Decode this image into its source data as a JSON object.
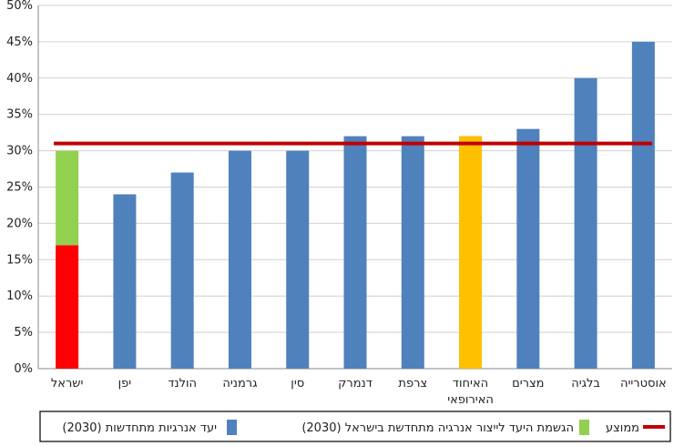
{
  "chart_data": {
    "type": "bar",
    "title": "",
    "xlabel": "",
    "ylabel": "",
    "ylim": [
      0,
      50
    ],
    "y_ticks": [
      "0%",
      "5%",
      "10%",
      "15%",
      "20%",
      "25%",
      "30%",
      "35%",
      "40%",
      "45%",
      "50%"
    ],
    "y_tick_values": [
      0,
      5,
      10,
      15,
      20,
      25,
      30,
      35,
      40,
      45,
      50
    ],
    "grid": true,
    "categories": [
      [
        "ישראל"
      ],
      [
        "יפן"
      ],
      [
        "הולנד"
      ],
      [
        "גרמניה"
      ],
      [
        "סין"
      ],
      [
        "דנמרק"
      ],
      [
        "צרפת"
      ],
      [
        "האיחוד",
        "האירופאי"
      ],
      [
        "מצרים"
      ],
      [
        "בלגיה"
      ],
      [
        "אוסטרייה"
      ]
    ],
    "series": [
      {
        "name": "יעד אנרגיות מתחדשות (2030)",
        "color": "#4f81bd",
        "values": [
          null,
          24,
          27,
          30,
          30,
          32,
          32,
          32,
          33,
          40,
          45
        ]
      },
      {
        "name": "יעד אנרגיות מתחדשות (2030)",
        "color": "#ffc000",
        "values": [
          null,
          null,
          null,
          null,
          null,
          null,
          null,
          32,
          null,
          null,
          null
        ],
        "note_highlight": true
      },
      {
        "name": "",
        "color": "#ff0000",
        "values": [
          17,
          null,
          null,
          null,
          null,
          null,
          null,
          null,
          null,
          null,
          null
        ],
        "stack": "israel"
      },
      {
        "name": "הגשמת היעד לייצור אנרגיה מתחדשת בישראל (2030)",
        "color": "#92d050",
        "values": [
          13,
          null,
          null,
          null,
          null,
          null,
          null,
          null,
          null,
          null,
          null
        ],
        "stack": "israel"
      },
      {
        "name": "ממוצע",
        "type": "line",
        "color": "#c00000",
        "value": 31
      }
    ],
    "legend": {
      "placement": "bottom",
      "entries": [
        {
          "label": "יעד אנרגיות מתחדשות (2030)",
          "color": "#4f81bd",
          "kind": "box"
        },
        {
          "label": "הגשמת היעד לייצור אנרגיה מתחדשת בישראל (2030)",
          "color": "#92d050",
          "kind": "box"
        },
        {
          "label": "ממוצע",
          "color": "#c00000",
          "kind": "line"
        }
      ]
    }
  }
}
